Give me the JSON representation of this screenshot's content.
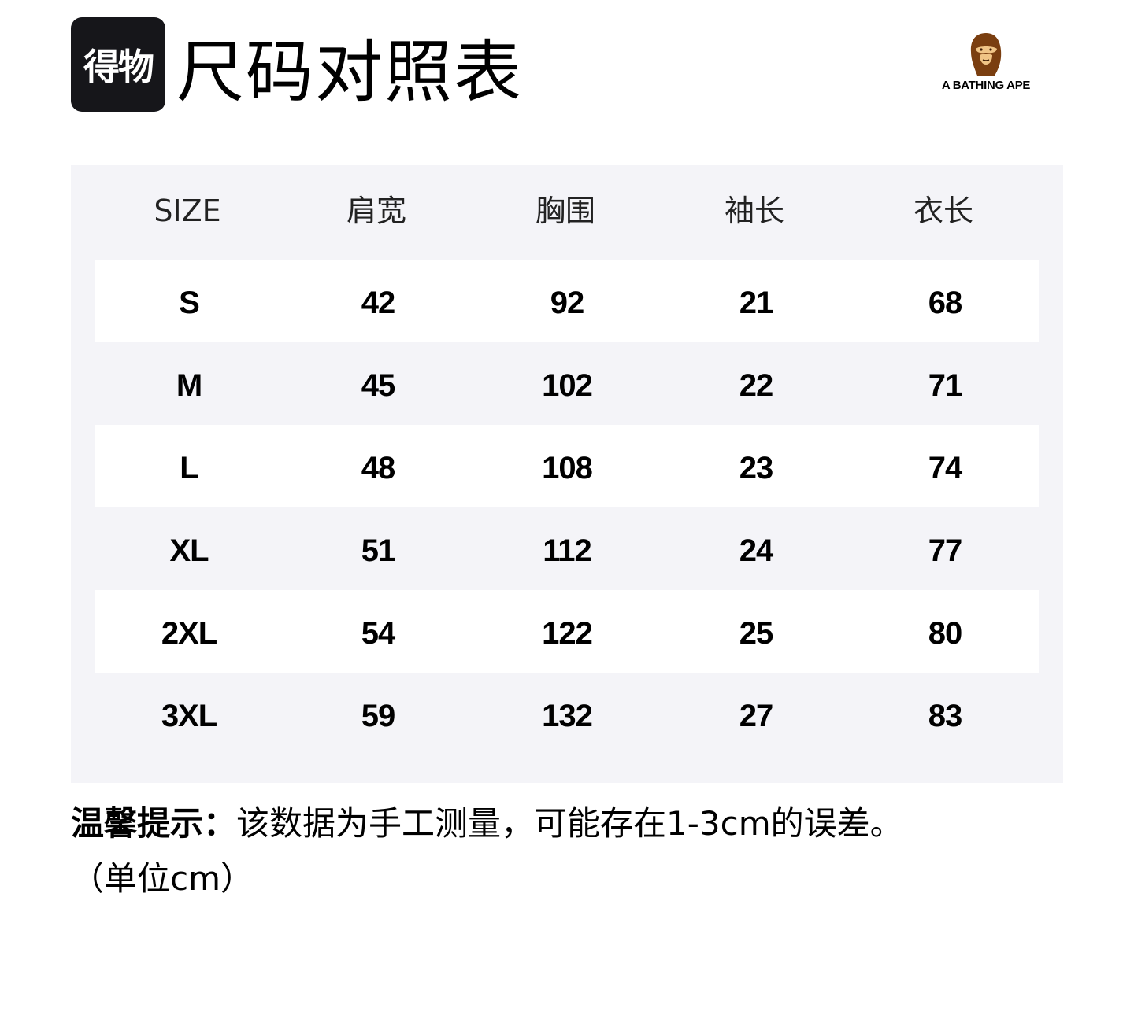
{
  "brand": {
    "logo_text": "得物"
  },
  "title": "尺码对照表",
  "partner_logo": {
    "text": "A BATHING APE",
    "color": "#7a3e10"
  },
  "table": {
    "headers": [
      "SIZE",
      "肩宽",
      "胸围",
      "袖长",
      "衣长"
    ],
    "rows": [
      [
        "S",
        "42",
        "92",
        "21",
        "68"
      ],
      [
        "M",
        "45",
        "102",
        "22",
        "71"
      ],
      [
        "L",
        "48",
        "108",
        "23",
        "74"
      ],
      [
        "XL",
        "51",
        "112",
        "24",
        "77"
      ],
      [
        "2XL",
        "54",
        "122",
        "25",
        "80"
      ],
      [
        "3XL",
        "59",
        "132",
        "27",
        "83"
      ]
    ]
  },
  "note": {
    "label": "温馨提示：",
    "text": "该数据为手工测量，可能存在1-3cm的误差。",
    "unit": "（单位cm）"
  }
}
